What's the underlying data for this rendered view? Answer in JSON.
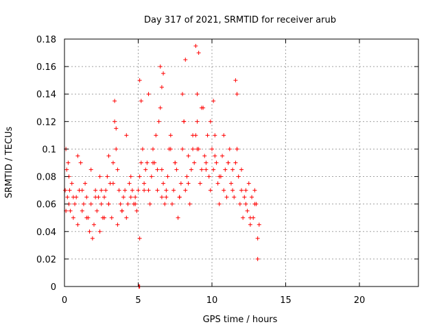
{
  "chart_data": {
    "type": "scatter",
    "title": "Day 317 of 2021, SRMTID for receiver arub",
    "xlabel": "GPS time / hours",
    "ylabel": "SRMTID / TECUs",
    "xlim": [
      0,
      24
    ],
    "ylim": [
      0,
      0.18
    ],
    "xticks": [
      0,
      5,
      10,
      15,
      20
    ],
    "xtick_labels": [
      "0",
      "5",
      "10",
      "15",
      "20"
    ],
    "yticks": [
      0,
      0.02,
      0.04,
      0.06,
      0.08,
      0.1,
      0.12,
      0.14,
      0.16,
      0.18
    ],
    "ytick_labels": [
      "0",
      "0.02",
      "0.04",
      "0.06",
      "0.08",
      "0.1",
      "0.12",
      "0.14",
      "0.16",
      "0.18"
    ],
    "grid": true,
    "marker": "+",
    "color": "#ff0000",
    "series": [
      {
        "name": "SRMTID",
        "x": [
          0.05,
          0.1,
          0.15,
          0.2,
          0.25,
          0.3,
          0.35,
          0.4,
          0.5,
          0.6,
          0.7,
          0.8,
          0.9,
          1.0,
          1.1,
          1.2,
          1.3,
          1.4,
          1.5,
          1.6,
          1.7,
          1.8,
          1.9,
          2.0,
          2.1,
          2.2,
          2.3,
          2.4,
          2.5,
          2.6,
          2.7,
          2.8,
          2.9,
          3.0,
          3.1,
          3.2,
          3.3,
          3.4,
          3.5,
          3.6,
          3.7,
          3.8,
          3.9,
          4.0,
          4.1,
          4.2,
          4.3,
          4.4,
          4.5,
          4.6,
          4.7,
          4.8,
          4.9,
          5.0,
          5.1,
          5.2,
          5.3,
          5.4,
          5.5,
          5.6,
          5.7,
          5.8,
          5.9,
          6.0,
          6.1,
          6.2,
          6.3,
          6.4,
          6.5,
          6.6,
          6.7,
          6.8,
          6.9,
          7.0,
          7.1,
          7.2,
          7.3,
          7.4,
          7.5,
          7.6,
          7.7,
          7.8,
          7.9,
          8.0,
          8.1,
          8.2,
          8.3,
          8.4,
          8.5,
          8.6,
          8.7,
          8.8,
          8.9,
          9.0,
          9.1,
          9.2,
          9.3,
          9.4,
          9.5,
          9.6,
          9.7,
          9.8,
          9.9,
          10.0,
          10.1,
          10.2,
          10.3,
          10.4,
          10.5,
          10.6,
          10.7,
          10.8,
          10.9,
          11.0,
          11.1,
          11.2,
          11.3,
          11.4,
          11.5,
          11.6,
          11.7,
          11.8,
          11.9,
          12.0,
          12.1,
          12.2,
          12.3,
          12.4,
          12.5,
          12.6,
          12.7,
          12.8,
          12.9,
          13.0,
          13.1,
          13.2,
          0.1,
          0.3,
          0.6,
          0.9,
          1.2,
          1.5,
          1.8,
          2.1,
          2.4,
          2.7,
          3.0,
          3.3,
          3.6,
          3.9,
          4.2,
          4.5,
          4.8,
          5.1,
          5.4,
          5.7,
          6.0,
          6.3,
          6.6,
          6.9,
          7.2,
          7.5,
          7.8,
          8.1,
          8.4,
          8.7,
          9.0,
          9.3,
          9.6,
          9.9,
          10.2,
          10.5,
          10.8,
          11.1,
          11.4,
          11.7,
          12.0,
          12.3,
          12.6,
          12.9,
          13.1,
          3.4,
          3.5,
          5.1,
          5.2,
          6.5,
          6.6,
          6.7,
          8.0,
          8.2,
          8.9,
          9.0,
          9.1,
          10.1,
          11.6,
          11.7,
          2.5,
          3.0,
          5.05,
          5.1
        ],
        "y": [
          0.07,
          0.1,
          0.085,
          0.065,
          0.09,
          0.06,
          0.07,
          0.055,
          0.075,
          0.05,
          0.06,
          0.065,
          0.045,
          0.07,
          0.09,
          0.055,
          0.06,
          0.075,
          0.065,
          0.05,
          0.04,
          0.06,
          0.035,
          0.045,
          0.07,
          0.055,
          0.065,
          0.08,
          0.06,
          0.05,
          0.065,
          0.07,
          0.08,
          0.06,
          0.075,
          0.05,
          0.09,
          0.12,
          0.1,
          0.085,
          0.07,
          0.06,
          0.055,
          0.065,
          0.07,
          0.05,
          0.06,
          0.075,
          0.065,
          0.07,
          0.06,
          0.065,
          0.055,
          0.07,
          0.08,
          0.09,
          0.1,
          0.075,
          0.085,
          0.09,
          0.07,
          0.06,
          0.08,
          0.1,
          0.09,
          0.11,
          0.07,
          0.12,
          0.13,
          0.085,
          0.075,
          0.06,
          0.065,
          0.08,
          0.1,
          0.11,
          0.06,
          0.07,
          0.09,
          0.085,
          0.05,
          0.065,
          0.075,
          0.1,
          0.12,
          0.07,
          0.08,
          0.095,
          0.06,
          0.085,
          0.1,
          0.09,
          0.11,
          0.12,
          0.1,
          0.075,
          0.085,
          0.13,
          0.095,
          0.09,
          0.11,
          0.08,
          0.07,
          0.1,
          0.085,
          0.11,
          0.09,
          0.075,
          0.06,
          0.08,
          0.095,
          0.07,
          0.085,
          0.065,
          0.09,
          0.1,
          0.075,
          0.085,
          0.065,
          0.09,
          0.1,
          0.08,
          0.06,
          0.07,
          0.05,
          0.065,
          0.06,
          0.055,
          0.075,
          0.045,
          0.065,
          0.05,
          0.07,
          0.06,
          0.035,
          0.045,
          0.055,
          0.08,
          0.065,
          0.095,
          0.07,
          0.05,
          0.085,
          0.065,
          0.04,
          0.05,
          0.06,
          0.075,
          0.045,
          0.055,
          0.11,
          0.08,
          0.06,
          0.035,
          0.07,
          0.14,
          0.09,
          0.085,
          0.065,
          0.07,
          0.1,
          0.09,
          0.065,
          0.12,
          0.075,
          0.11,
          0.1,
          0.13,
          0.085,
          0.12,
          0.095,
          0.08,
          0.11,
          0.09,
          0.07,
          0.1,
          0.085,
          0.07,
          0.05,
          0.06,
          0.02,
          0.135,
          0.115,
          0.15,
          0.135,
          0.16,
          0.145,
          0.155,
          0.14,
          0.165,
          0.175,
          0.14,
          0.17,
          0.135,
          0.15,
          0.14,
          0.07,
          0.095,
          0.0,
          0.0
        ]
      }
    ]
  }
}
